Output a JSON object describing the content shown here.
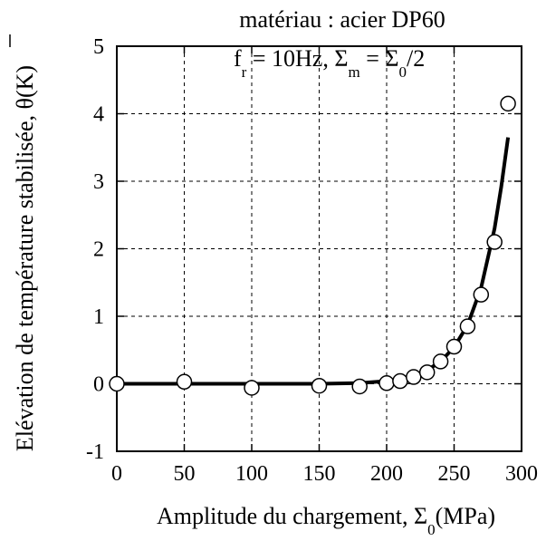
{
  "chart_data": {
    "type": "scatter",
    "annotations": {
      "line1": "matériau : acier DP60",
      "line2_parts": [
        "f",
        "r",
        " = 10Hz, Σ",
        "m",
        " = Σ",
        "0",
        "/2"
      ]
    },
    "xlabel_parts": [
      "Amplitude du chargement, Σ",
      "0",
      "(MPa)"
    ],
    "ylabel": "Elévation de température stabilisée, θ(K)",
    "xlim": [
      0,
      300
    ],
    "ylim": [
      -1,
      5
    ],
    "xticks": [
      "0",
      "50",
      "100",
      "150",
      "200",
      "250",
      "300"
    ],
    "yticks": [
      "-1",
      "0",
      "1",
      "2",
      "3",
      "4",
      "5"
    ],
    "grid": true,
    "series": [
      {
        "kind": "points",
        "marker": "open-circle",
        "x": [
          0,
          50,
          100,
          150,
          180,
          200,
          210,
          220,
          230,
          240,
          250,
          260,
          270,
          280,
          290
        ],
        "y": [
          0.0,
          0.03,
          -0.06,
          -0.03,
          -0.04,
          0.01,
          0.04,
          0.1,
          0.17,
          0.33,
          0.55,
          0.85,
          1.32,
          2.1,
          4.15
        ]
      },
      {
        "kind": "line",
        "x": [
          0,
          150,
          180,
          200,
          210,
          220,
          230,
          240,
          250,
          260,
          270,
          280,
          285,
          290
        ],
        "y": [
          0,
          0,
          0.01,
          0.04,
          0.07,
          0.12,
          0.2,
          0.33,
          0.54,
          0.87,
          1.42,
          2.3,
          2.92,
          3.65
        ]
      }
    ]
  }
}
